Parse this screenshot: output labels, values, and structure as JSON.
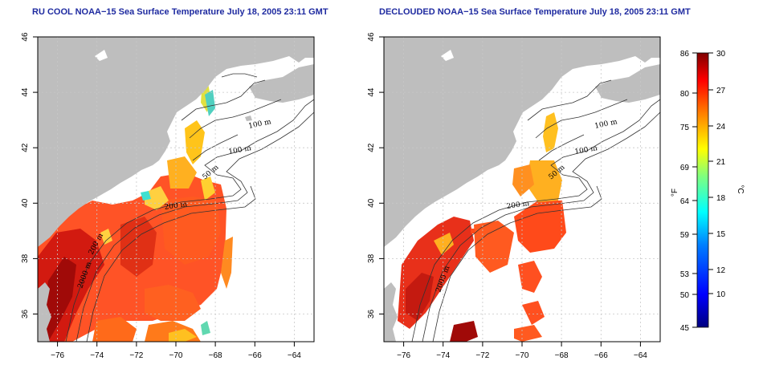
{
  "titles": {
    "left": "RU COOL NOAA−15 Sea Surface Temperature July 18, 2005 23:11 GMT",
    "right": "DECLOUDED NOAA−15 Sea Surface Temperature July 18, 2005 23:11 GMT"
  },
  "axes": {
    "x_ticks": [
      "−76",
      "−74",
      "−72",
      "−70",
      "−68",
      "−66",
      "−64"
    ],
    "y_ticks": [
      "46",
      "44",
      "42",
      "40",
      "38",
      "36"
    ],
    "lon_range": [
      -77,
      -63
    ],
    "lat_range": [
      35,
      46
    ]
  },
  "contour_labels": {
    "left": [
      "100 m",
      "100 m",
      "50 m",
      "200 m",
      "200 m",
      "2000 m"
    ],
    "right": [
      "100 m",
      "100 m",
      "50 m",
      "200 m",
      "2000 m"
    ]
  },
  "colorbar": {
    "f_unit": "°F",
    "c_unit": "°C",
    "f_ticks": [
      "86",
      "80",
      "75",
      "69",
      "64",
      "59",
      "53",
      "50",
      "45"
    ],
    "c_ticks": [
      "30",
      "27",
      "24",
      "21",
      "18",
      "15",
      "12",
      "10"
    ],
    "colors": [
      "#00007f",
      "#0000ff",
      "#007fff",
      "#00ffff",
      "#7fff7f",
      "#ffff00",
      "#ff7f00",
      "#ff0000",
      "#7f0000"
    ]
  },
  "colors": {
    "land": "#bebebe",
    "title": "#1e2aa0"
  }
}
